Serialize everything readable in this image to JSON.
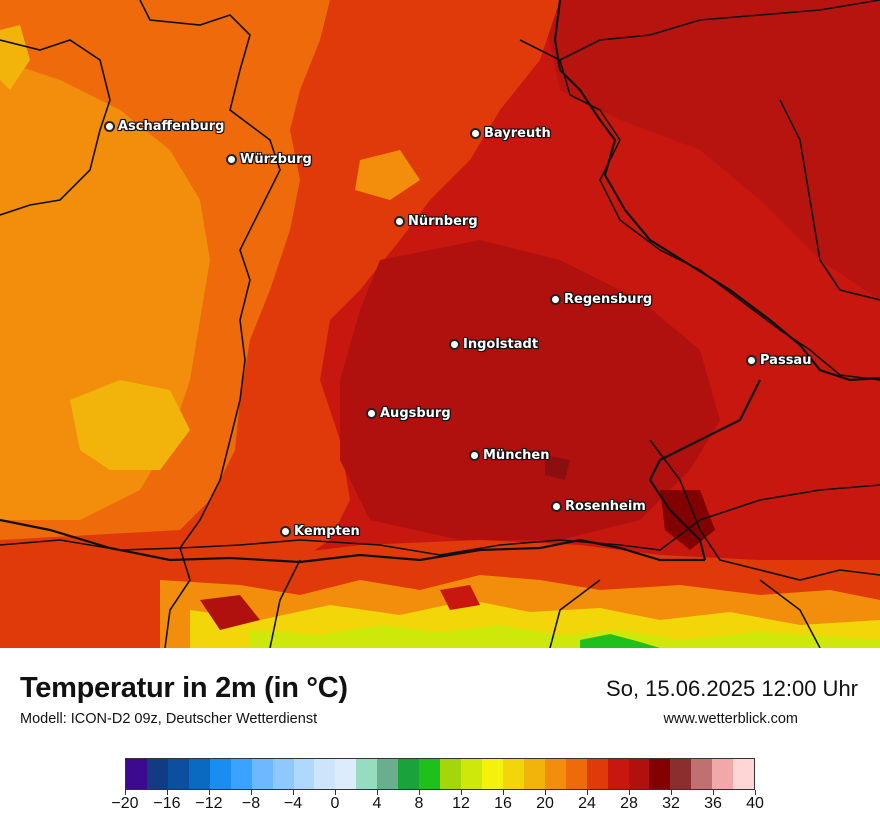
{
  "map": {
    "cities": [
      {
        "name": "Aschaffenburg"
      },
      {
        "name": "Würzburg"
      },
      {
        "name": "Bayreuth"
      },
      {
        "name": "Nürnberg"
      },
      {
        "name": "Regensburg"
      },
      {
        "name": "Ingolstadt"
      },
      {
        "name": "Passau"
      },
      {
        "name": "Augsburg"
      },
      {
        "name": "München"
      },
      {
        "name": "Rosenheim"
      },
      {
        "name": "Kempten"
      }
    ]
  },
  "footer": {
    "title": "Temperatur in 2m (in °C)",
    "subtitle": "Modell: ICON-D2 09z, Deutscher Wetterdienst",
    "datetime": "So, 15.06.2025 12:00 Uhr",
    "website": "www.wetterblick.com"
  },
  "legend": {
    "min": -20,
    "max": 40,
    "tick_labels": [
      "−20",
      "−16",
      "−12",
      "−8",
      "−4",
      "0",
      "4",
      "8",
      "12",
      "16",
      "20",
      "24",
      "28",
      "32",
      "36",
      "40"
    ],
    "tick_values": [
      -20,
      -16,
      -12,
      -8,
      -4,
      0,
      4,
      8,
      12,
      16,
      20,
      24,
      28,
      32,
      36,
      40
    ],
    "colors": [
      "#3b0a8f",
      "#123a85",
      "#0b4f9e",
      "#0a6ac2",
      "#1a8ef0",
      "#3aa2ff",
      "#6eb8ff",
      "#8ec8ff",
      "#b0d8ff",
      "#cde4fa",
      "#dcecfb",
      "#96dcc0",
      "#6aae8e",
      "#19a33a",
      "#1fc01b",
      "#a3d60b",
      "#cfe80b",
      "#f2f20a",
      "#f2d60a",
      "#f2b40b",
      "#f28e0b",
      "#ee6a0b",
      "#e03a0b",
      "#c8170f",
      "#b0110f",
      "#820000",
      "#8a2e2e",
      "#c07070",
      "#f0a8a8",
      "#ffd6d6"
    ]
  }
}
